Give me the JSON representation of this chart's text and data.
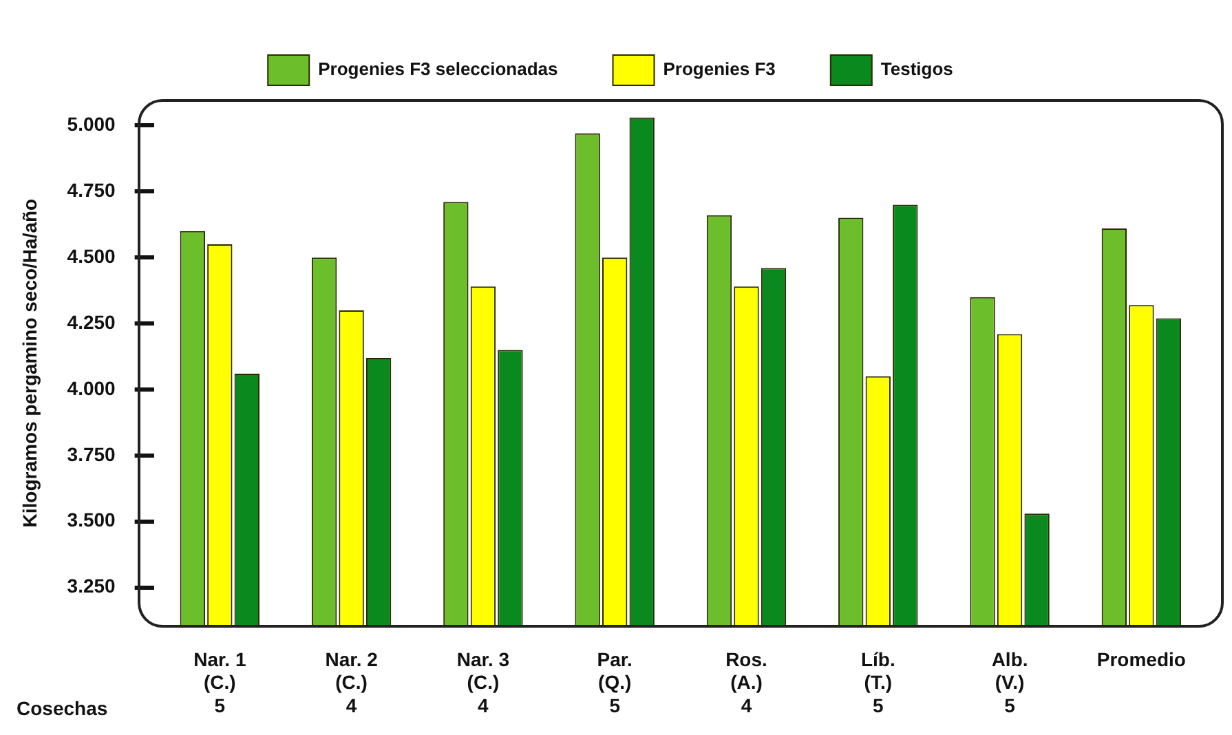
{
  "chart_data": {
    "type": "bar",
    "ylabel": "Kilogramos pergamino seco/Ha/año",
    "categories": [
      "Nar. 1\n(C.)\n5",
      "Nar. 2\n(C.)\n4",
      "Nar. 3\n(C.)\n4",
      "Par.\n(Q.)\n5",
      "Ros.\n(A.)\n4",
      "Líb.\n(T.)\n5",
      "Alb.\n(V.)\n5",
      "Promedio"
    ],
    "series": [
      {
        "name": "Progenies F3 seleccionadas",
        "color": "#6cbf2a",
        "values": [
          4.6,
          4.5,
          4.71,
          4.97,
          4.66,
          4.65,
          4.35,
          4.61
        ]
      },
      {
        "name": "Progenies F3",
        "color": "#ffff00",
        "values": [
          4.55,
          4.3,
          4.39,
          4.5,
          4.39,
          4.05,
          4.21,
          4.32
        ]
      },
      {
        "name": "Testigos",
        "color": "#0a8a1e",
        "values": [
          4.06,
          4.12,
          4.15,
          5.03,
          4.46,
          4.7,
          3.53,
          4.27
        ]
      }
    ],
    "ylim": [
      3.1,
      5.1
    ],
    "yticks": [
      {
        "value": 3.25,
        "label": "3.250"
      },
      {
        "value": 3.5,
        "label": "3.500"
      },
      {
        "value": 3.75,
        "label": "3.750"
      },
      {
        "value": 4,
        "label": "4.000"
      },
      {
        "value": 4.25,
        "label": "4.250"
      },
      {
        "value": 4.5,
        "label": "4.500"
      },
      {
        "value": 4.75,
        "label": "4.750"
      },
      {
        "value": 5,
        "label": "5.000"
      }
    ],
    "annotations": [
      "Cosechas"
    ],
    "grid": false,
    "legend": "top"
  }
}
